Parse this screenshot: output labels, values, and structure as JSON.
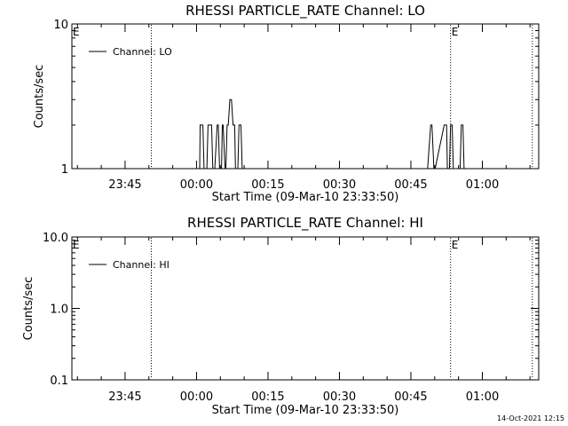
{
  "chart_data": [
    {
      "type": "line",
      "title": "RHESSI PARTICLE_RATE Channel: LO",
      "xlabel": "Start Time (09-Mar-10 23:33:50)",
      "ylabel": "Counts/sec",
      "yscale": "log",
      "ylim": [
        1,
        10
      ],
      "ytick_labels": [
        "10",
        "1"
      ],
      "xlim_seconds_from_start": [
        0,
        5880
      ],
      "xtick_labels": [
        "23:45",
        "00:00",
        "00:15",
        "00:30",
        "00:45",
        "01:00"
      ],
      "xtick_seconds": [
        670,
        1570,
        2470,
        3370,
        4270,
        5170
      ],
      "legend": {
        "label": "Channel: LO",
        "position": "top-left"
      },
      "event_markers": [
        {
          "label": "E",
          "seconds": 0
        },
        {
          "label": "E",
          "seconds": 4770
        }
      ],
      "dotted_lines_seconds": [
        1000,
        4770,
        5800
      ],
      "series": [
        {
          "name": "Channel: LO",
          "x_seconds": [
            1570,
            1610,
            1615,
            1650,
            1665,
            1700,
            1715,
            1760,
            1775,
            1800,
            1830,
            1845,
            1860,
            1885,
            1895,
            1905,
            1930,
            1940,
            1955,
            1970,
            1990,
            2010,
            2030,
            2050,
            2060,
            2090,
            2105,
            2130,
            2145,
            4480,
            4520,
            4535,
            4560,
            4575,
            4690,
            4720,
            4730,
            4755,
            4770,
            4790,
            4805,
            4890,
            4905,
            4925,
            4940
          ],
          "y_values": [
            1,
            1,
            2,
            2,
            1,
            1,
            2,
            2,
            1,
            1,
            2,
            2,
            1,
            1,
            2,
            2,
            1,
            1,
            2,
            2,
            3,
            3,
            2,
            2,
            1,
            1,
            2,
            2,
            1,
            1,
            2,
            2,
            1,
            1,
            2,
            2,
            1,
            1,
            2,
            2,
            1,
            1,
            2,
            2,
            1
          ]
        }
      ]
    },
    {
      "type": "line",
      "title": "RHESSI PARTICLE_RATE Channel: HI",
      "xlabel": "Start Time (09-Mar-10 23:33:50)",
      "ylabel": "Counts/sec",
      "yscale": "log",
      "ylim": [
        0.1,
        10
      ],
      "ytick_labels": [
        "10.0",
        "1.0",
        "0.1"
      ],
      "xlim_seconds_from_start": [
        0,
        5880
      ],
      "xtick_labels": [
        "23:45",
        "00:00",
        "00:15",
        "00:30",
        "00:45",
        "01:00"
      ],
      "xtick_seconds": [
        670,
        1570,
        2470,
        3370,
        4270,
        5170
      ],
      "legend": {
        "label": "Channel: HI",
        "position": "top-left"
      },
      "event_markers": [
        {
          "label": "E",
          "seconds": 0
        },
        {
          "label": "E",
          "seconds": 4770
        }
      ],
      "dotted_lines_seconds": [
        1000,
        4770,
        5800
      ],
      "series": [
        {
          "name": "Channel: HI",
          "x_seconds": [],
          "y_values": []
        }
      ]
    }
  ],
  "footer": {
    "timestamp": "14-Oct-2021 12:15"
  }
}
